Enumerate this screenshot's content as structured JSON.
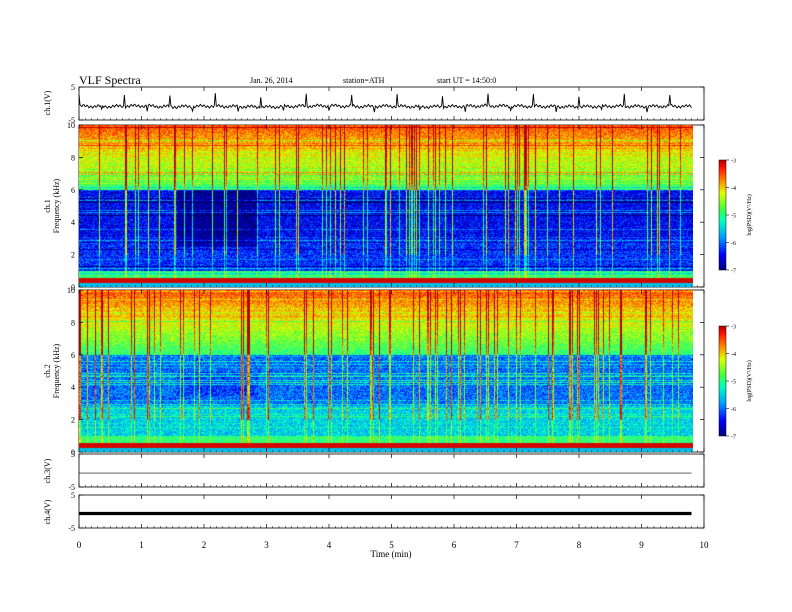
{
  "header": {
    "title": "VLF Spectra",
    "date": "Jan. 26, 2014",
    "station": "station=ATH",
    "start": "start  UT =  14:50:0"
  },
  "colors": {
    "spectrogram_scale": [
      "#000080",
      "#0000ff",
      "#00c8ff",
      "#00ff80",
      "#c8ff00",
      "#ffc800",
      "#ff3000",
      "#c00000"
    ],
    "trace": "#000000"
  },
  "chart_data": [
    {
      "type": "line",
      "name": "ch.1 waveform",
      "ylabel": "ch.1(V)",
      "ylim": [
        -5,
        5
      ],
      "yticks": [
        "5",
        "-5"
      ],
      "x": [
        0,
        0.5,
        1,
        1.5,
        2,
        2.5,
        3,
        3.5,
        4,
        4.5,
        5,
        5.5,
        6,
        6.5,
        7,
        7.5,
        8,
        8.5,
        9,
        9.5,
        9.8
      ],
      "values": [
        -0.8,
        -0.9,
        -0.7,
        -1.0,
        -0.8,
        -0.9,
        -1.1,
        -0.8,
        -0.7,
        -0.9,
        -0.8,
        -1.0,
        -0.9,
        -0.7,
        -0.8,
        -0.9,
        -1.0,
        -0.8,
        -0.9,
        -0.8,
        -0.9
      ]
    },
    {
      "type": "heatmap",
      "name": "ch.1 spectrogram",
      "ylabel": "ch.1 Frequency (kHz)",
      "ylim": [
        0,
        10
      ],
      "yticks": [
        "0",
        "2",
        "4",
        "6",
        "8",
        "10"
      ],
      "colorbar": {
        "label": "log(PSD)(V²/Hz)",
        "range": [
          -7,
          -3
        ],
        "ticks": [
          "-3",
          "-4",
          "-5",
          "-6",
          "-7"
        ]
      }
    },
    {
      "type": "heatmap",
      "name": "ch.2 spectrogram",
      "ylabel": "ch.2 Frequency (kHz)",
      "ylim": [
        0,
        10
      ],
      "yticks": [
        "0",
        "2",
        "4",
        "6",
        "8",
        "10"
      ],
      "colorbar": {
        "label": "log(PSD)(V²/Hz)",
        "range": [
          -7,
          -3
        ],
        "ticks": [
          "-3",
          "-4",
          "-5",
          "-6",
          "-7"
        ]
      }
    },
    {
      "type": "line",
      "name": "ch.3 waveform",
      "ylabel": "ch.3(V)",
      "ylim": [
        -5,
        5
      ],
      "yticks": [
        "5",
        "-5"
      ],
      "x": [
        0,
        9.8
      ],
      "values": [
        -0.8,
        -0.8
      ]
    },
    {
      "type": "line",
      "name": "ch.4 waveform",
      "ylabel": "ch.4(V)",
      "ylim": [
        -5,
        5
      ],
      "yticks": [
        "5",
        "-5"
      ],
      "x": [
        0,
        9.8
      ],
      "values": [
        -0.6,
        -0.6
      ]
    }
  ],
  "xaxis": {
    "label": "Time (min)",
    "xlim": [
      0,
      10
    ],
    "ticks": [
      "0",
      "1",
      "2",
      "3",
      "4",
      "5",
      "6",
      "7",
      "8",
      "9",
      "10"
    ]
  }
}
